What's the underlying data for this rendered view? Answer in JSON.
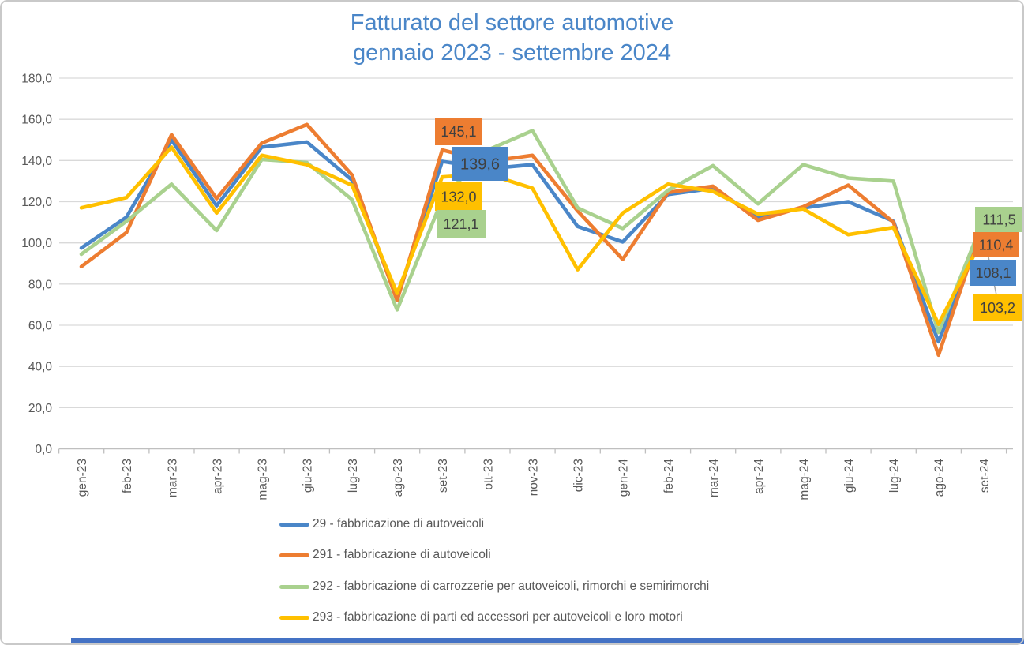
{
  "title": {
    "line1": "Fatturato del settore automotive",
    "line2": "gennaio 2023 - settembre 2024"
  },
  "colors": {
    "title": "#4a86c8",
    "axis_text": "#595959",
    "gridline": "#d9d9d9",
    "axis_line": "#bfbfbf",
    "callout_text": "#404040",
    "leader_line": "#a6a6a6",
    "bottom_bar": "#4472c4"
  },
  "chart_data": {
    "type": "line",
    "title": "Fatturato del settore automotive gennaio 2023 - settembre 2024",
    "xlabel": "",
    "ylabel": "",
    "ylim": [
      0,
      180
    ],
    "ytick_step": 20,
    "ytick_labels": [
      "0,0",
      "20,0",
      "40,0",
      "60,0",
      "80,0",
      "100,0",
      "120,0",
      "140,0",
      "160,0",
      "180,0"
    ],
    "grid": true,
    "legend_position": "bottom-left",
    "categories": [
      "gen-23",
      "feb-23",
      "mar-23",
      "apr-23",
      "mag-23",
      "giu-23",
      "lug-23",
      "ago-23",
      "set-23",
      "ott-23",
      "nov-23",
      "dic-23",
      "gen-24",
      "feb-24",
      "mar-24",
      "apr-24",
      "mag-24",
      "giu-24",
      "lug-24",
      "ago-24",
      "set-24"
    ],
    "series": [
      {
        "name": "29 - fabbricazione di autoveicoli",
        "color": "#4a86c8",
        "values": [
          97.5,
          112.5,
          150.0,
          118.0,
          146.5,
          149.0,
          130.5,
          73.0,
          139.6,
          136.0,
          138.0,
          108.0,
          100.5,
          123.5,
          126.5,
          112.5,
          117.0,
          120.0,
          110.5,
          52.0,
          108.1
        ]
      },
      {
        "name": "291 - fabbricazione di autoveicoli",
        "color": "#ed7d31",
        "values": [
          88.5,
          105.0,
          152.5,
          121.5,
          148.5,
          157.5,
          133.0,
          72.0,
          145.1,
          139.5,
          142.5,
          115.5,
          92.0,
          124.5,
          127.5,
          111.0,
          117.5,
          128.0,
          110.0,
          45.5,
          110.4
        ]
      },
      {
        "name": "292 - fabbricazione di carrozzerie per autoveicoli, rimorchi e semirimorchi",
        "color": "#a9d18e",
        "values": [
          94.5,
          110.5,
          128.5,
          106.0,
          140.5,
          139.0,
          121.0,
          67.5,
          121.1,
          145.0,
          154.5,
          117.0,
          107.0,
          125.5,
          137.5,
          119.0,
          138.0,
          131.5,
          130.0,
          56.5,
          111.5
        ]
      },
      {
        "name": "293 - fabbricazione di parti ed accessori per autoveicoli e loro motori",
        "color": "#ffc000",
        "values": [
          117.0,
          122.0,
          146.5,
          114.5,
          142.5,
          138.0,
          128.0,
          75.5,
          132.0,
          133.5,
          126.5,
          87.0,
          114.5,
          128.5,
          125.0,
          114.0,
          116.5,
          104.0,
          107.5,
          60.5,
          103.2
        ]
      }
    ],
    "callouts": [
      {
        "category": "set-23",
        "series_index": 1,
        "text": "145,1"
      },
      {
        "category": "set-23",
        "series_index": 0,
        "text": "139,6"
      },
      {
        "category": "set-23",
        "series_index": 3,
        "text": "132,0"
      },
      {
        "category": "set-23",
        "series_index": 2,
        "text": "121,1"
      },
      {
        "category": "set-24",
        "series_index": 2,
        "text": "111,5"
      },
      {
        "category": "set-24",
        "series_index": 1,
        "text": "110,4"
      },
      {
        "category": "set-24",
        "series_index": 0,
        "text": "108,1"
      },
      {
        "category": "set-24",
        "series_index": 3,
        "text": "103,2"
      }
    ]
  }
}
